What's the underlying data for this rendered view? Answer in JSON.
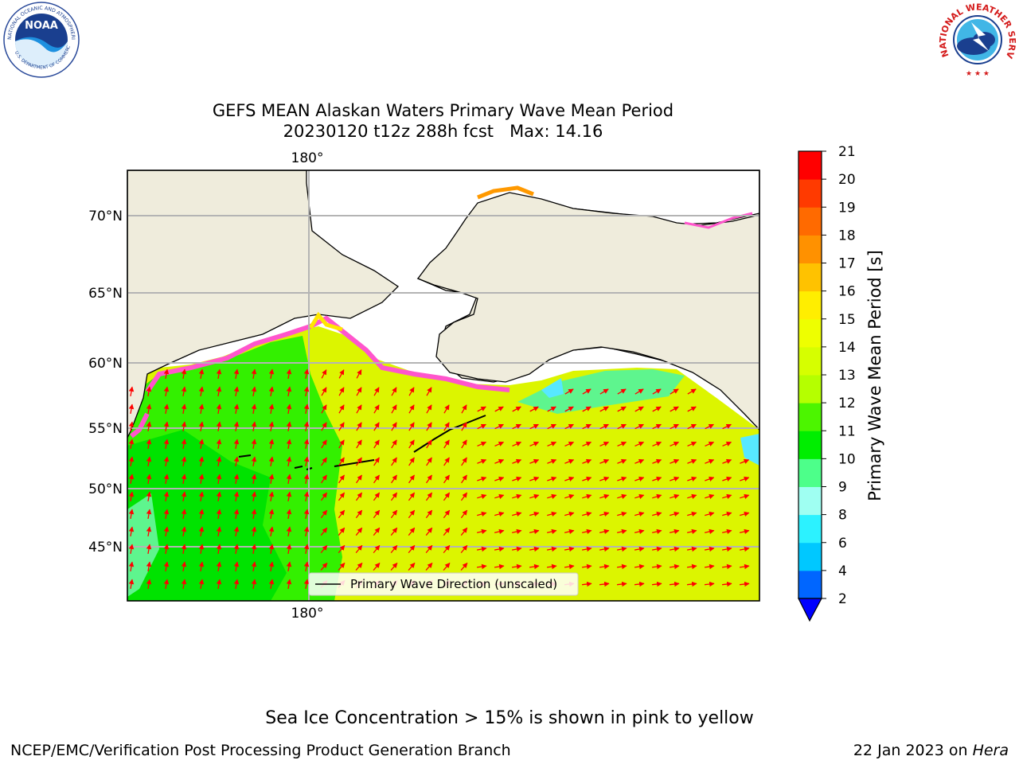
{
  "header": {
    "logo_left": {
      "ring_text": "NATIONAL OCEANIC AND ATMOSPHERIC ADMINISTRATION",
      "bottom_text": "U.S. DEPARTMENT OF COMMERCE",
      "center_text": "NOAA"
    },
    "logo_right": {
      "ring_text": "NATIONAL WEATHER SERVICE"
    }
  },
  "title": {
    "line1": "GEFS MEAN Alaskan Waters Primary Wave Mean Period",
    "line2": "20230120 t12z 288h fcst   Max: 14.16"
  },
  "map": {
    "lon_label_top": "180°",
    "lon_label_bottom": "180°",
    "lat_labels": [
      "70°N",
      "65°N",
      "60°N",
      "55°N",
      "50°N",
      "45°N"
    ],
    "legend_label": "Primary Wave Direction (unscaled)",
    "colors": {
      "land": "#efecdc",
      "ice_pink": "#ff55cc",
      "ice_yellow": "#ffe600",
      "arrow": "#ff0000",
      "grid": "#b4b4b4"
    }
  },
  "colorbar": {
    "label": "Primary Wave Mean Period [s]",
    "ticks": [
      "2",
      "4",
      "6",
      "8",
      "9",
      "10",
      "11",
      "12",
      "13",
      "14",
      "15",
      "16",
      "17",
      "18",
      "19",
      "20",
      "21"
    ],
    "colors": [
      "#0066ff",
      "#00c8ff",
      "#2cf2ff",
      "#9ffff2",
      "#4dff8a",
      "#00ee00",
      "#4cf500",
      "#b5ff00",
      "#d6ff00",
      "#eeff00",
      "#ffee00",
      "#ffc200",
      "#ff9100",
      "#ff6a00",
      "#ff3a00",
      "#ff0000"
    ],
    "under_color": "#0000ff"
  },
  "footer": {
    "note": "Sea Ice Concentration > 15% is shown in pink to yellow",
    "credit": "NCEP/EMC/Verification Post Processing Product Generation Branch",
    "date": "22 Jan 2023 on ",
    "machine": "Hera"
  }
}
